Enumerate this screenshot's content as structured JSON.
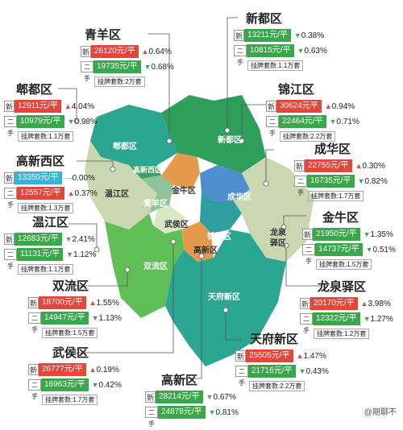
{
  "districts": {
    "qingyang": {
      "name": "青羊区",
      "new_price": "26120元/平",
      "new_change": "0.64%",
      "new_dir": "up",
      "old_price": "19735元/平",
      "old_change": "0.68%",
      "old_dir": "down",
      "listings": "挂牌套数:2万套"
    },
    "xindu": {
      "name": "新都区",
      "new_price": "13211元/平",
      "new_change": "0.38%",
      "new_dir": "down",
      "old_price": "10815元/平",
      "old_change": "0.63%",
      "old_dir": "down",
      "listings": "挂牌套数:1.1万套"
    },
    "pidu": {
      "name": "郫都区",
      "new_price": "12911元/平",
      "new_change": "4.04%",
      "new_dir": "up",
      "old_price": "10979元/平",
      "old_change": "0.98%",
      "old_dir": "down",
      "listings": "挂牌套数:1.1万套"
    },
    "jinjiang": {
      "name": "锦江区",
      "new_price": "30624元平",
      "new_change": "0.94%",
      "new_dir": "up",
      "old_price": "22464元/平",
      "old_change": "0.71%",
      "old_dir": "down",
      "listings": "挂牌套数:2.2万套"
    },
    "gaoxinxi": {
      "name": "高新西区",
      "new_price": "13350元/平",
      "new_change": "0.00%",
      "new_dir": "flat",
      "old_price": "12557元/平",
      "old_change": "0.37%",
      "old_dir": "up",
      "listings": "挂牌套数:1.3万套"
    },
    "chenghua": {
      "name": "成华区",
      "new_price": "22755元/平",
      "new_change": "0.30%",
      "new_dir": "up",
      "old_price": "16735元/平",
      "old_change": "0.82%",
      "old_dir": "down",
      "listings": "挂牌套数:1.7万套"
    },
    "wenjiang": {
      "name": "温江区",
      "new_price": "12683元/平",
      "new_change": "2.41%",
      "new_dir": "down",
      "old_price": "11131元/平",
      "old_change": "1.12%",
      "old_dir": "down",
      "listings": "挂牌套数:1.1万套"
    },
    "jinniu": {
      "name": "金牛区",
      "new_price": "21950元/平",
      "new_change": "1.35%",
      "new_dir": "down",
      "old_price": "14737元/平",
      "old_change": "0.51%",
      "old_dir": "down",
      "listings": "挂牌套数:1.5万套"
    },
    "shuangliu": {
      "name": "双流区",
      "new_price": "18700元/平",
      "new_change": "1.55%",
      "new_dir": "up",
      "old_price": "14947元/平",
      "old_change": "1.13%",
      "old_dir": "down",
      "listings": "挂牌套数:1.5万套"
    },
    "longquanyi": {
      "name": "龙泉驿区",
      "new_price": "20170元/平",
      "new_change": "3.98%",
      "new_dir": "up",
      "old_price": "12322元/平",
      "old_change": "1.27%",
      "old_dir": "down",
      "listings": "挂牌套数:1.2万套"
    },
    "wuhou": {
      "name": "武侯区",
      "new_price": "26777元/平",
      "new_change": "0.19%",
      "new_dir": "up",
      "old_price": "16963元/平",
      "old_change": "0.42%",
      "old_dir": "down",
      "listings": "挂牌套数:1.7万套"
    },
    "tianfu": {
      "name": "天府新区",
      "new_price": "25505元/平",
      "new_change": "1.47%",
      "new_dir": "up",
      "old_price": "21716元/平",
      "old_change": "0.43%",
      "old_dir": "down",
      "listings": "挂牌套数:2.2万套"
    },
    "gaoxin": {
      "name": "高新区",
      "new_price": "28214元/平",
      "new_change": "0.67%",
      "new_dir": "down",
      "old_price": "24878元/平",
      "old_change": "0.81%",
      "old_dir": "down",
      "listings": ""
    }
  },
  "tags": {
    "new": "新",
    "old": "二手"
  },
  "map_labels": {
    "pidu": "郫都区",
    "xindu": "新都区",
    "gaoxinxi": "高新西区",
    "wenjiang": "温江区",
    "qingyang": "青羊区",
    "jinniu": "金牛区",
    "chenghua": "成华区",
    "wuhou": "武侯区",
    "jinjiang": "锦江区",
    "longquanyi_a": "龙泉",
    "longquanyi_b": "驿区",
    "gaoxin": "高新区",
    "shuangliu": "双流区",
    "tianfu": "天府新区"
  },
  "watermark": "@期聊不"
}
